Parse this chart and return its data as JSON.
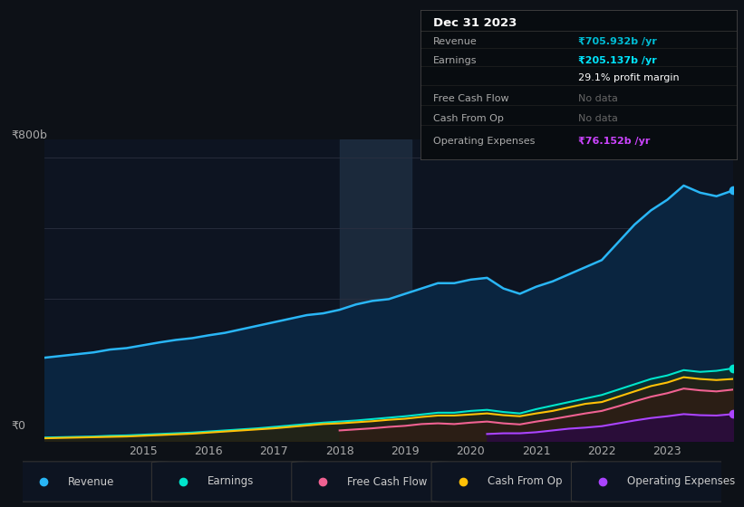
{
  "background_color": "#0d1117",
  "plot_bg_color": "#0d1421",
  "title_box_date": "Dec 31 2023",
  "years": [
    2013.5,
    2014,
    2014.25,
    2014.5,
    2014.75,
    2015,
    2015.25,
    2015.5,
    2015.75,
    2016,
    2016.25,
    2016.5,
    2016.75,
    2017,
    2017.25,
    2017.5,
    2017.75,
    2018,
    2018.25,
    2018.5,
    2018.75,
    2019,
    2019.25,
    2019.5,
    2019.75,
    2020,
    2020.25,
    2020.5,
    2020.75,
    2021,
    2021.25,
    2021.5,
    2021.75,
    2022,
    2022.25,
    2022.5,
    2022.75,
    2023,
    2023.25,
    2023.5,
    2023.75,
    2024.0
  ],
  "revenue": [
    235,
    245,
    250,
    258,
    262,
    270,
    278,
    285,
    290,
    298,
    305,
    315,
    325,
    335,
    345,
    355,
    360,
    370,
    385,
    395,
    400,
    415,
    430,
    445,
    445,
    455,
    460,
    430,
    415,
    435,
    450,
    470,
    490,
    510,
    560,
    610,
    650,
    680,
    720,
    700,
    690,
    706
  ],
  "earnings": [
    10,
    12,
    13,
    15,
    16,
    18,
    20,
    22,
    24,
    27,
    30,
    33,
    36,
    40,
    44,
    48,
    52,
    55,
    58,
    62,
    66,
    70,
    75,
    80,
    80,
    85,
    88,
    82,
    78,
    90,
    100,
    110,
    120,
    130,
    145,
    160,
    175,
    185,
    200,
    195,
    198,
    205
  ],
  "cash_from_op": [
    8,
    10,
    11,
    12,
    13,
    15,
    17,
    19,
    21,
    24,
    27,
    30,
    33,
    36,
    40,
    44,
    48,
    50,
    53,
    56,
    60,
    63,
    68,
    72,
    72,
    75,
    78,
    73,
    70,
    78,
    85,
    95,
    105,
    110,
    125,
    140,
    155,
    165,
    180,
    175,
    172,
    175
  ],
  "operating_expenses": [
    null,
    null,
    null,
    null,
    null,
    null,
    null,
    null,
    null,
    null,
    null,
    null,
    null,
    null,
    null,
    null,
    null,
    null,
    null,
    null,
    null,
    null,
    null,
    null,
    null,
    null,
    20,
    22,
    22,
    25,
    30,
    35,
    38,
    42,
    50,
    58,
    65,
    70,
    76,
    73,
    72,
    76
  ],
  "fcf_line": [
    null,
    null,
    null,
    null,
    null,
    null,
    null,
    null,
    null,
    null,
    null,
    null,
    null,
    null,
    null,
    null,
    null,
    30,
    33,
    36,
    40,
    43,
    48,
    50,
    48,
    52,
    55,
    50,
    47,
    55,
    62,
    70,
    78,
    85,
    98,
    112,
    125,
    135,
    148,
    143,
    140,
    145
  ],
  "ylim": [
    0,
    850
  ],
  "y_label_800": "₹800b",
  "y_label_0": "₹0",
  "xtick_years": [
    2015,
    2016,
    2017,
    2018,
    2019,
    2020,
    2021,
    2022,
    2023
  ],
  "revenue_color": "#29b6f6",
  "earnings_color": "#00e5cc",
  "fcf_color": "#f06292",
  "cash_from_op_color": "#ffc107",
  "op_exp_color": "#aa44ff",
  "highlighted_region_start": 2018.0,
  "highlighted_region_end": 2019.1,
  "legend_items": [
    {
      "label": "Revenue",
      "color": "#29b6f6"
    },
    {
      "label": "Earnings",
      "color": "#00e5cc"
    },
    {
      "label": "Free Cash Flow",
      "color": "#f06292"
    },
    {
      "label": "Cash From Op",
      "color": "#ffc107"
    },
    {
      "label": "Operating Expenses",
      "color": "#aa44ff"
    }
  ],
  "info_rows": [
    {
      "label": "Revenue",
      "value": "₹705.932b /yr",
      "value_color": "#00bcd4",
      "bold": true
    },
    {
      "label": "Earnings",
      "value": "₹205.137b /yr",
      "value_color": "#00e5ff",
      "bold": true
    },
    {
      "label": "",
      "value": "29.1% profit margin",
      "value_color": "#ffffff",
      "bold": false
    },
    {
      "label": "Free Cash Flow",
      "value": "No data",
      "value_color": "#666666",
      "bold": false
    },
    {
      "label": "Cash From Op",
      "value": "No data",
      "value_color": "#666666",
      "bold": false
    },
    {
      "label": "Operating Expenses",
      "value": "₹76.152b /yr",
      "value_color": "#cc44ff",
      "bold": true
    }
  ]
}
